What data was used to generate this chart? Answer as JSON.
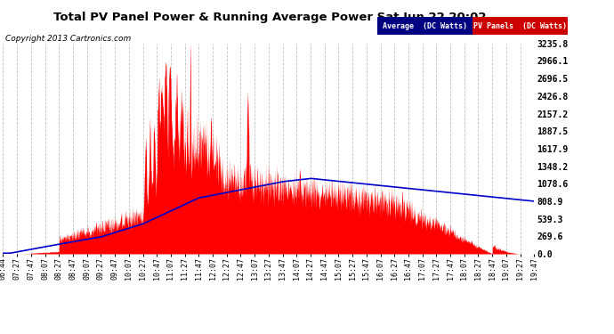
{
  "title": "Total PV Panel Power & Running Average Power Sat Jun 22 20:02",
  "copyright": "Copyright 2013 Cartronics.com",
  "ylabel_right_ticks": [
    0.0,
    269.6,
    539.3,
    808.9,
    1078.6,
    1348.2,
    1617.9,
    1887.5,
    2157.2,
    2426.8,
    2696.5,
    2966.1,
    3235.8
  ],
  "ymax": 3235.8,
  "ymin": 0.0,
  "pv_color": "#ff0000",
  "avg_color": "#0000cc",
  "background_color": "#ffffff",
  "plot_bg_color": "#ffffff",
  "grid_color": "#bbbbbb",
  "legend_avg_bg": "#000080",
  "legend_pv_bg": "#cc0000",
  "x_labels": [
    "06:44",
    "07:27",
    "07:47",
    "08:07",
    "08:27",
    "08:47",
    "09:07",
    "09:27",
    "09:47",
    "10:07",
    "10:27",
    "10:47",
    "11:07",
    "11:27",
    "11:47",
    "12:07",
    "12:27",
    "12:47",
    "13:07",
    "13:27",
    "13:47",
    "14:07",
    "14:27",
    "14:47",
    "15:07",
    "15:27",
    "15:47",
    "16:07",
    "16:27",
    "16:47",
    "17:07",
    "17:27",
    "17:47",
    "18:07",
    "18:27",
    "18:47",
    "19:07",
    "19:27",
    "19:47"
  ]
}
